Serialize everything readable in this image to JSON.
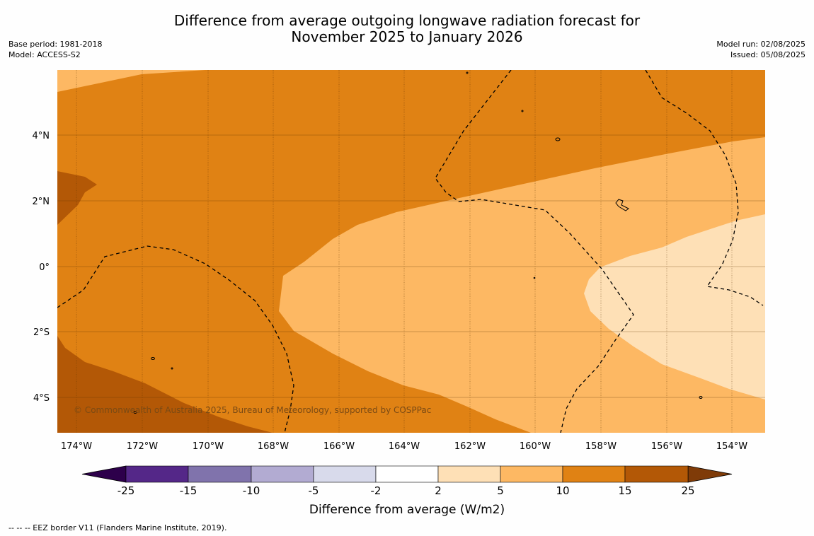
{
  "title": {
    "line1": "Difference from average outgoing longwave radiation forecast for",
    "line2": "November 2025 to January 2026"
  },
  "meta_left": {
    "base_period": "Base period: 1981-2018",
    "model": "Model: ACCESS-S2"
  },
  "meta_right": {
    "model_run": "Model run: 02/08/2025",
    "issued": "Issued: 05/08/2025"
  },
  "map": {
    "lat_labels": [
      "4°N",
      "2°N",
      "0°",
      "2°S",
      "4°S"
    ],
    "lon_labels": [
      "174°W",
      "172°W",
      "170°W",
      "168°W",
      "166°W",
      "164°W",
      "162°W",
      "160°W",
      "158°W",
      "156°W",
      "154°W"
    ],
    "copyright": "© Commonwealth of Australia 2025, Bureau of Meteorology, supported by COSPPac",
    "colors": {
      "c15_25": "#b35806",
      "c10_15": "#e08214",
      "c5_10": "#fdb863",
      "c2_5": "#fee0b6"
    }
  },
  "colorbar": {
    "title": "Difference from average (W/m2)",
    "tick_labels": [
      "-25",
      "-15",
      "-10",
      "-5",
      "-2",
      "2",
      "5",
      "10",
      "15",
      "25"
    ],
    "colors": [
      "#542788",
      "#8073ac",
      "#b2abd2",
      "#d8daeb",
      "#ffffff",
      "#fee0b6",
      "#fdb863",
      "#e08214",
      "#b35806"
    ],
    "under_color": "#2d004b",
    "over_color": "#7f3b08"
  },
  "footer": {
    "legend_text": "--  --  -- EEZ border V11 (Flanders Marine Institute, 2019)."
  }
}
